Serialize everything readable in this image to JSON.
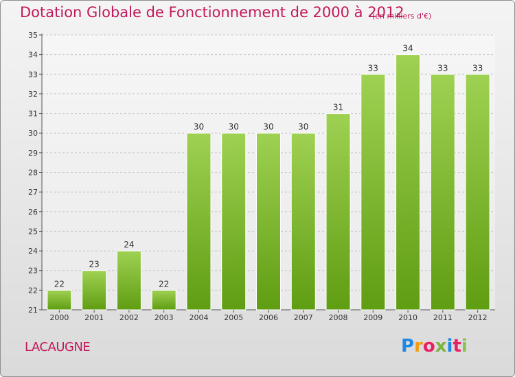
{
  "header": {
    "title": "Dotation Globale de Fonctionnement de 2000 à 2012",
    "subtitle": "(en milliers d'€)"
  },
  "footer": {
    "commune": "LACAUGNE",
    "brand": "Proxiti",
    "brand_colors": [
      "#1e88e5",
      "#f39c12",
      "#e91e63",
      "#7cb342",
      "#1e88e5",
      "#e91e63",
      "#8bc34a"
    ]
  },
  "colors": {
    "title": "#c2185b",
    "bar_top": "#9fd152",
    "bar_bottom": "#5f9d12",
    "grid": "#c8c8c8"
  },
  "chart_data": {
    "type": "bar",
    "categories": [
      "2000",
      "2001",
      "2002",
      "2003",
      "2004",
      "2005",
      "2006",
      "2007",
      "2008",
      "2009",
      "2010",
      "2011",
      "2012"
    ],
    "values": [
      22,
      23,
      24,
      22,
      30,
      30,
      30,
      30,
      31,
      33,
      34,
      33,
      33
    ],
    "title": "Dotation Globale de Fonctionnement de 2000 à 2012",
    "subtitle": "(en milliers d'€)",
    "xlabel": "",
    "ylabel": "",
    "ylim": [
      21,
      35
    ],
    "yticks": [
      21,
      22,
      23,
      24,
      25,
      26,
      27,
      28,
      29,
      30,
      31,
      32,
      33,
      34,
      35
    ],
    "grid": true,
    "legend": "none"
  }
}
